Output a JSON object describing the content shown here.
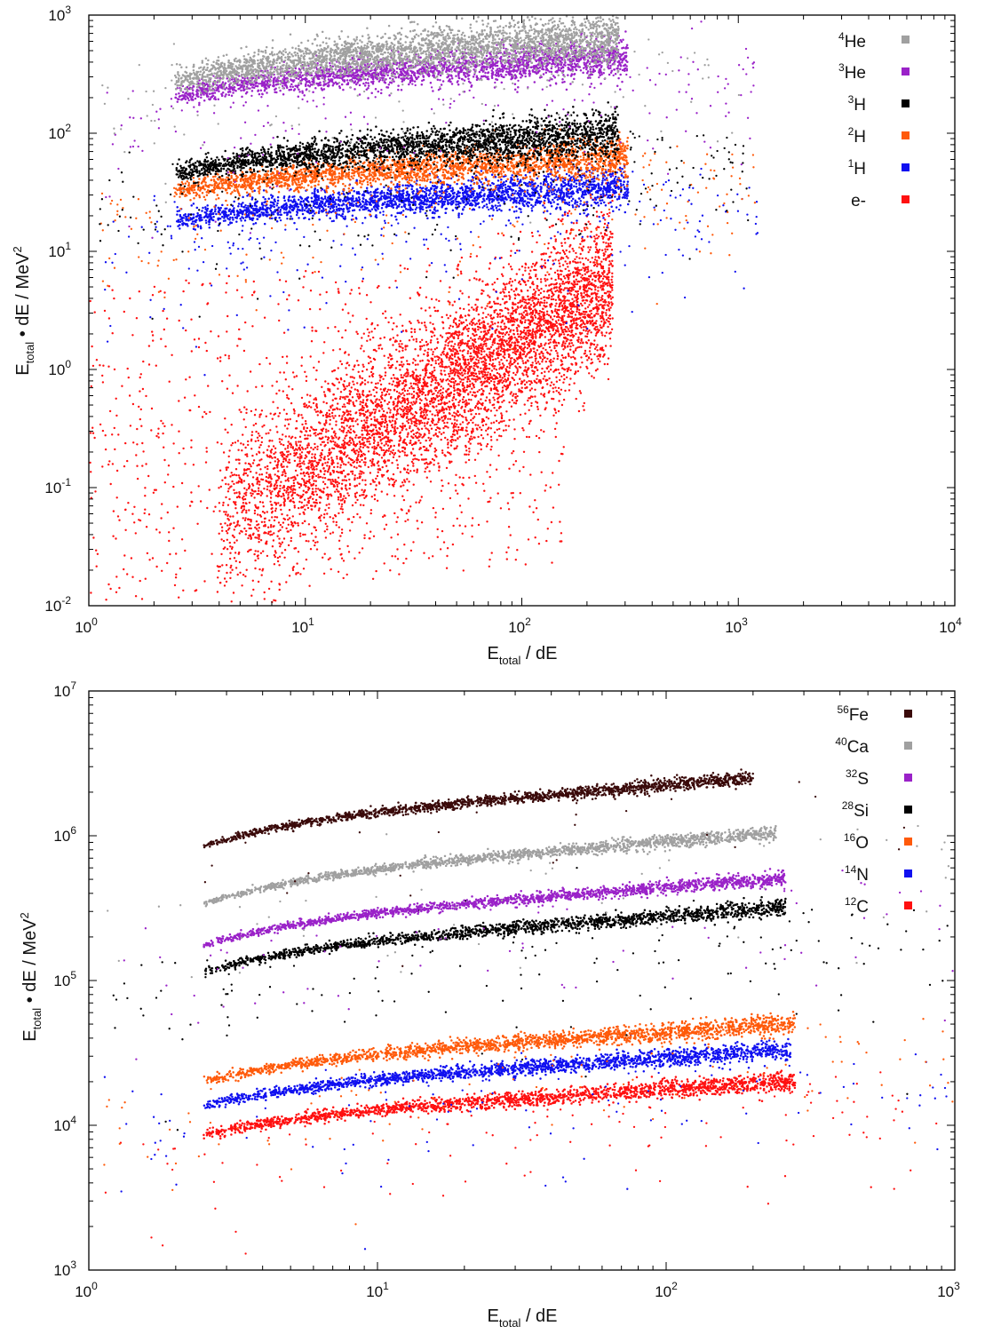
{
  "chart_data": [
    {
      "type": "scatter",
      "id": "top",
      "title": "",
      "xlabel": "E",
      "xlabel_sub": "total",
      "xlabel_rest": " / dE",
      "ylabel": "E",
      "ylabel_sub": "total",
      "ylabel_rest": " • dE / MeV",
      "ylabel_sup": "2",
      "xscale": "log",
      "yscale": "log",
      "xlim": [
        1,
        10000
      ],
      "ylim": [
        0.01,
        1000
      ],
      "x_ticks": [
        {
          "value": 1,
          "base": "10",
          "exp": "0"
        },
        {
          "value": 10,
          "base": "10",
          "exp": "1"
        },
        {
          "value": 100,
          "base": "10",
          "exp": "2"
        },
        {
          "value": 1000,
          "base": "10",
          "exp": "3"
        },
        {
          "value": 10000,
          "base": "10",
          "exp": "4"
        }
      ],
      "y_ticks": [
        {
          "value": 0.01,
          "base": "10",
          "exp": "-2"
        },
        {
          "value": 0.1,
          "base": "10",
          "exp": "-1"
        },
        {
          "value": 1,
          "base": "10",
          "exp": "0"
        },
        {
          "value": 10,
          "base": "10",
          "exp": "1"
        },
        {
          "value": 100,
          "base": "10",
          "exp": "2"
        },
        {
          "value": 1000,
          "base": "10",
          "exp": "3"
        }
      ],
      "legend_position": "top-right",
      "series": [
        {
          "name": "4He",
          "sup": "4",
          "base": "He",
          "color": "#a0a0a0",
          "band": {
            "x_start": 2.5,
            "x_end": 280,
            "y_start": 270,
            "y_end": 650,
            "spread": 0.12,
            "density": 3000
          },
          "scatter_count": 140
        },
        {
          "name": "3He",
          "sup": "3",
          "base": "He",
          "color": "#9a22c8",
          "band": {
            "x_start": 2.5,
            "x_end": 310,
            "y_start": 210,
            "y_end": 440,
            "spread": 0.09,
            "density": 2300
          },
          "scatter_count": 220
        },
        {
          "name": "3H",
          "sup": "3",
          "base": "H",
          "color": "#000000",
          "band": {
            "x_start": 2.5,
            "x_end": 280,
            "y_start": 45,
            "y_end": 100,
            "spread": 0.1,
            "density": 2600
          },
          "scatter_count": 260
        },
        {
          "name": "2H",
          "sup": "2",
          "base": "H",
          "color": "#ff5a0a",
          "band": {
            "x_start": 2.5,
            "x_end": 310,
            "y_start": 32,
            "y_end": 62,
            "spread": 0.09,
            "density": 2300
          },
          "scatter_count": 260
        },
        {
          "name": "1H",
          "sup": "1",
          "base": "H",
          "color": "#1010f0",
          "band": {
            "x_start": 2.5,
            "x_end": 310,
            "y_start": 18,
            "y_end": 35,
            "spread": 0.09,
            "density": 2300
          },
          "scatter_count": 260
        },
        {
          "name": "e-",
          "sup": "",
          "base": "e-",
          "color": "#ff1010",
          "cloud": {
            "count": 6500
          },
          "scatter_count": 0
        }
      ]
    },
    {
      "type": "scatter",
      "id": "bottom",
      "title": "",
      "xlabel": "E",
      "xlabel_sub": "total",
      "xlabel_rest": " / dE",
      "ylabel": "E",
      "ylabel_sub": "total",
      "ylabel_rest": " • dE / MeV",
      "ylabel_sup": "2",
      "xscale": "log",
      "yscale": "log",
      "xlim": [
        1,
        1000
      ],
      "ylim": [
        1000,
        10000000
      ],
      "x_ticks": [
        {
          "value": 1,
          "base": "10",
          "exp": "0"
        },
        {
          "value": 10,
          "base": "10",
          "exp": "1"
        },
        {
          "value": 100,
          "base": "10",
          "exp": "2"
        },
        {
          "value": 1000,
          "base": "10",
          "exp": "3"
        }
      ],
      "y_ticks": [
        {
          "value": 1000,
          "base": "10",
          "exp": "3"
        },
        {
          "value": 10000,
          "base": "10",
          "exp": "4"
        },
        {
          "value": 100000,
          "base": "10",
          "exp": "5"
        },
        {
          "value": 1000000,
          "base": "10",
          "exp": "6"
        },
        {
          "value": 10000000,
          "base": "10",
          "exp": "7"
        }
      ],
      "legend_position": "top-right",
      "series": [
        {
          "name": "56Fe",
          "sup": "56",
          "base": "Fe",
          "color": "#3a0a0a",
          "band": {
            "x_start": 2.5,
            "x_end": 200,
            "y_start": 850000,
            "y_end": 2500000,
            "spread": 0.025,
            "density": 1700
          },
          "scatter_count": 25
        },
        {
          "name": "40Ca",
          "sup": "40",
          "base": "Ca",
          "color": "#a0a0a0",
          "band": {
            "x_start": 2.5,
            "x_end": 240,
            "y_start": 340000,
            "y_end": 1050000,
            "spread": 0.025,
            "density": 1700
          },
          "scatter_count": 60
        },
        {
          "name": "32S",
          "sup": "32",
          "base": "S",
          "color": "#9a22c8",
          "band": {
            "x_start": 2.5,
            "x_end": 260,
            "y_start": 175000,
            "y_end": 510000,
            "spread": 0.025,
            "density": 1700
          },
          "scatter_count": 80
        },
        {
          "name": "28Si",
          "sup": "28",
          "base": "Si",
          "color": "#000000",
          "band": {
            "x_start": 2.5,
            "x_end": 260,
            "y_start": 115000,
            "y_end": 320000,
            "spread": 0.03,
            "density": 1700
          },
          "scatter_count": 150
        },
        {
          "name": "16O",
          "sup": "16",
          "base": "O",
          "color": "#ff5a0a",
          "band": {
            "x_start": 2.5,
            "x_end": 280,
            "y_start": 20000,
            "y_end": 50000,
            "spread": 0.035,
            "density": 1900
          },
          "scatter_count": 110
        },
        {
          "name": "14N",
          "sup": "14",
          "base": "N",
          "color": "#1010f0",
          "band": {
            "x_start": 2.5,
            "x_end": 270,
            "y_start": 13500,
            "y_end": 33000,
            "spread": 0.035,
            "density": 1900
          },
          "scatter_count": 110
        },
        {
          "name": "12C",
          "sup": "12",
          "base": "C",
          "color": "#ff1010",
          "band": {
            "x_start": 2.5,
            "x_end": 280,
            "y_start": 8500,
            "y_end": 20000,
            "spread": 0.035,
            "density": 1900
          },
          "scatter_count": 120
        }
      ]
    }
  ]
}
